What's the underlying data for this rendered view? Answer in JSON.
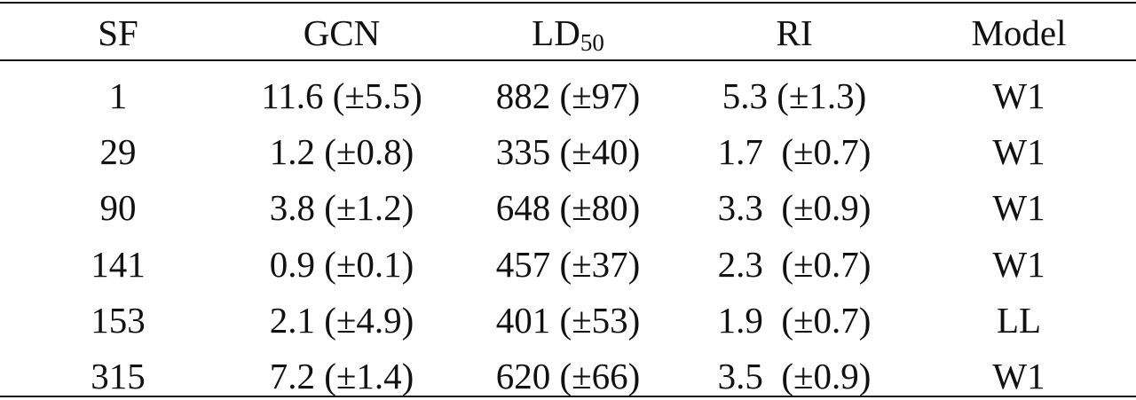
{
  "table": {
    "header": [
      "SF",
      "GCN",
      {
        "base": "LD",
        "sub": "50"
      },
      "RI",
      "Model"
    ],
    "rows": [
      [
        "1",
        "11.6 (±5.5)",
        "882 (±97)",
        "5.3 (±1.3)",
        "W1"
      ],
      [
        "29",
        "1.2 (±0.8)",
        "335 (±40)",
        "1.7  (±0.7)",
        "W1"
      ],
      [
        "90",
        "3.8 (±1.2)",
        "648 (±80)",
        "3.3  (±0.9)",
        "W1"
      ],
      [
        "141",
        "0.9 (±0.1)",
        "457 (±37)",
        "2.3  (±0.7)",
        "W1"
      ],
      [
        "153",
        "2.1 (±4.9)",
        "401 (±53)",
        "1.9  (±0.7)",
        "LL"
      ],
      [
        "315",
        "7.2 (±1.4)",
        "620 (±66)",
        "3.5  (±0.9)",
        "W1"
      ]
    ]
  }
}
